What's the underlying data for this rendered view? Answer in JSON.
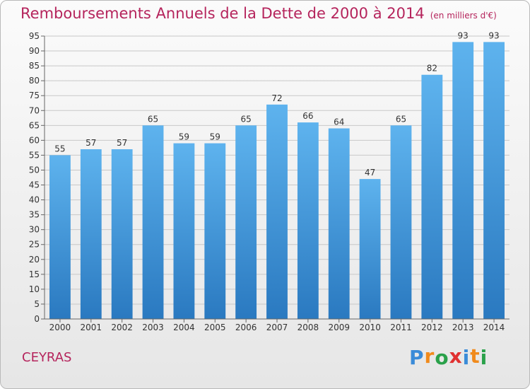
{
  "title": "Remboursements Annuels de la Dette de 2000 à 2014",
  "subtitle": "(en milliers d'€)",
  "commune": "CEYRAS",
  "logo": {
    "letters": [
      "P",
      "r",
      "o",
      "x",
      "i",
      "t",
      "i"
    ],
    "colors": [
      "#3a8bd8",
      "#f08a1c",
      "#2aa14a",
      "#e03131",
      "#3a8bd8",
      "#f08a1c",
      "#2aa14a"
    ]
  },
  "colors": {
    "accent": "#b5245c",
    "bar_light": "#5eb3ee",
    "bar_dark": "#2a79c0"
  },
  "chart_data": {
    "type": "bar",
    "categories": [
      "2000",
      "2001",
      "2002",
      "2003",
      "2004",
      "2005",
      "2006",
      "2007",
      "2008",
      "2009",
      "2010",
      "2011",
      "2012",
      "2013",
      "2014"
    ],
    "values": [
      55,
      57,
      57,
      65,
      59,
      59,
      65,
      72,
      66,
      64,
      47,
      65,
      82,
      93,
      93
    ],
    "title": "Remboursements Annuels de la Dette de 2000 à 2014",
    "xlabel": "",
    "ylabel": "",
    "ylim": [
      0,
      95
    ],
    "ytick_step": 5,
    "grid": true,
    "legend": "none"
  }
}
